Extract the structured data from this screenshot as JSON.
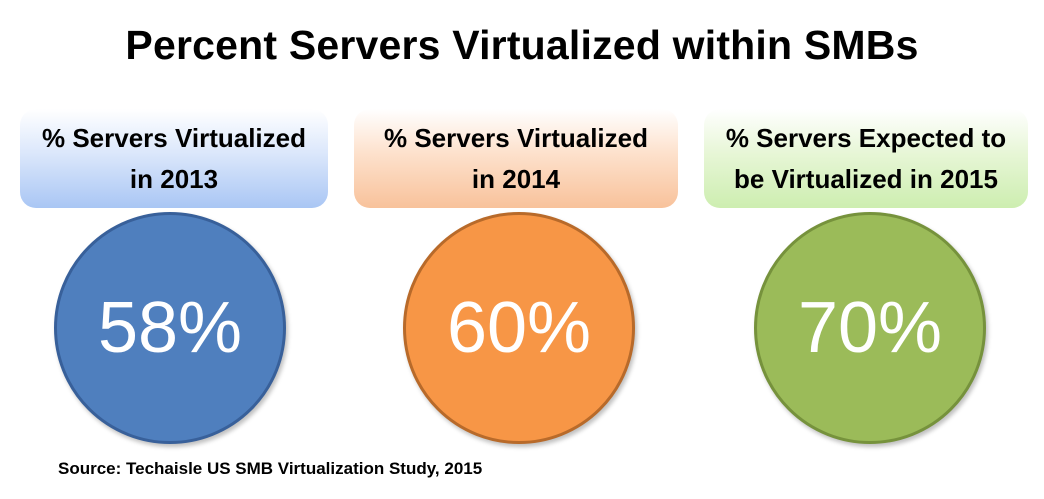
{
  "title": "Percent Servers Virtualized within SMBs",
  "source": "Source: Techaisle US SMB Virtualization Study, 2015",
  "colors": {
    "blue": "#4f7fbe",
    "orange": "#f79646",
    "green": "#9bbb59"
  },
  "chart_data": {
    "type": "table",
    "title": "Percent Servers Virtualized within SMBs",
    "categories": [
      "% Servers Virtualized in 2013",
      "% Servers Virtualized in 2014",
      "% Servers Expected to be Virtualized in 2015"
    ],
    "values": [
      58,
      60,
      70
    ],
    "value_labels": [
      "58%",
      "60%",
      "70%"
    ],
    "labels": [
      "% Servers Virtualized\nin 2013",
      "% Servers Virtualized\nin 2014",
      "% Servers Expected to\nbe Virtualized in 2015"
    ]
  }
}
